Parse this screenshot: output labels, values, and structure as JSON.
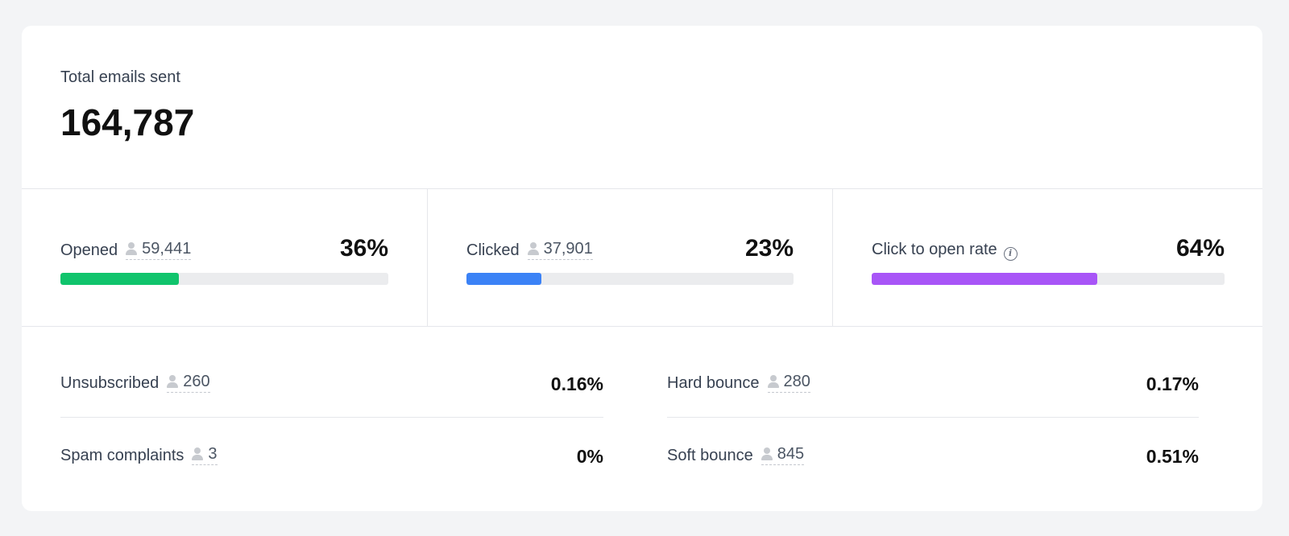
{
  "summary": {
    "total_label": "Total emails sent",
    "total_value": "164,787"
  },
  "metrics": [
    {
      "label": "Opened",
      "count": "59,441",
      "percent": "36%",
      "fill": 0.36,
      "color": "#10c46c",
      "icon": "person-icon"
    },
    {
      "label": "Clicked",
      "count": "37,901",
      "percent": "23%",
      "fill": 0.23,
      "color": "#3b82f6",
      "icon": "person-icon"
    },
    {
      "label": "Click to open rate",
      "percent": "64%",
      "fill": 0.64,
      "color": "#a855f7",
      "icon": "info-icon"
    }
  ],
  "stats": {
    "unsubscribed": {
      "label": "Unsubscribed",
      "count": "260",
      "percent": "0.16%"
    },
    "spam": {
      "label": "Spam complaints",
      "count": "3",
      "percent": "0%"
    },
    "hard_bounce": {
      "label": "Hard bounce",
      "count": "280",
      "percent": "0.17%"
    },
    "soft_bounce": {
      "label": "Soft bounce",
      "count": "845",
      "percent": "0.51%"
    }
  }
}
